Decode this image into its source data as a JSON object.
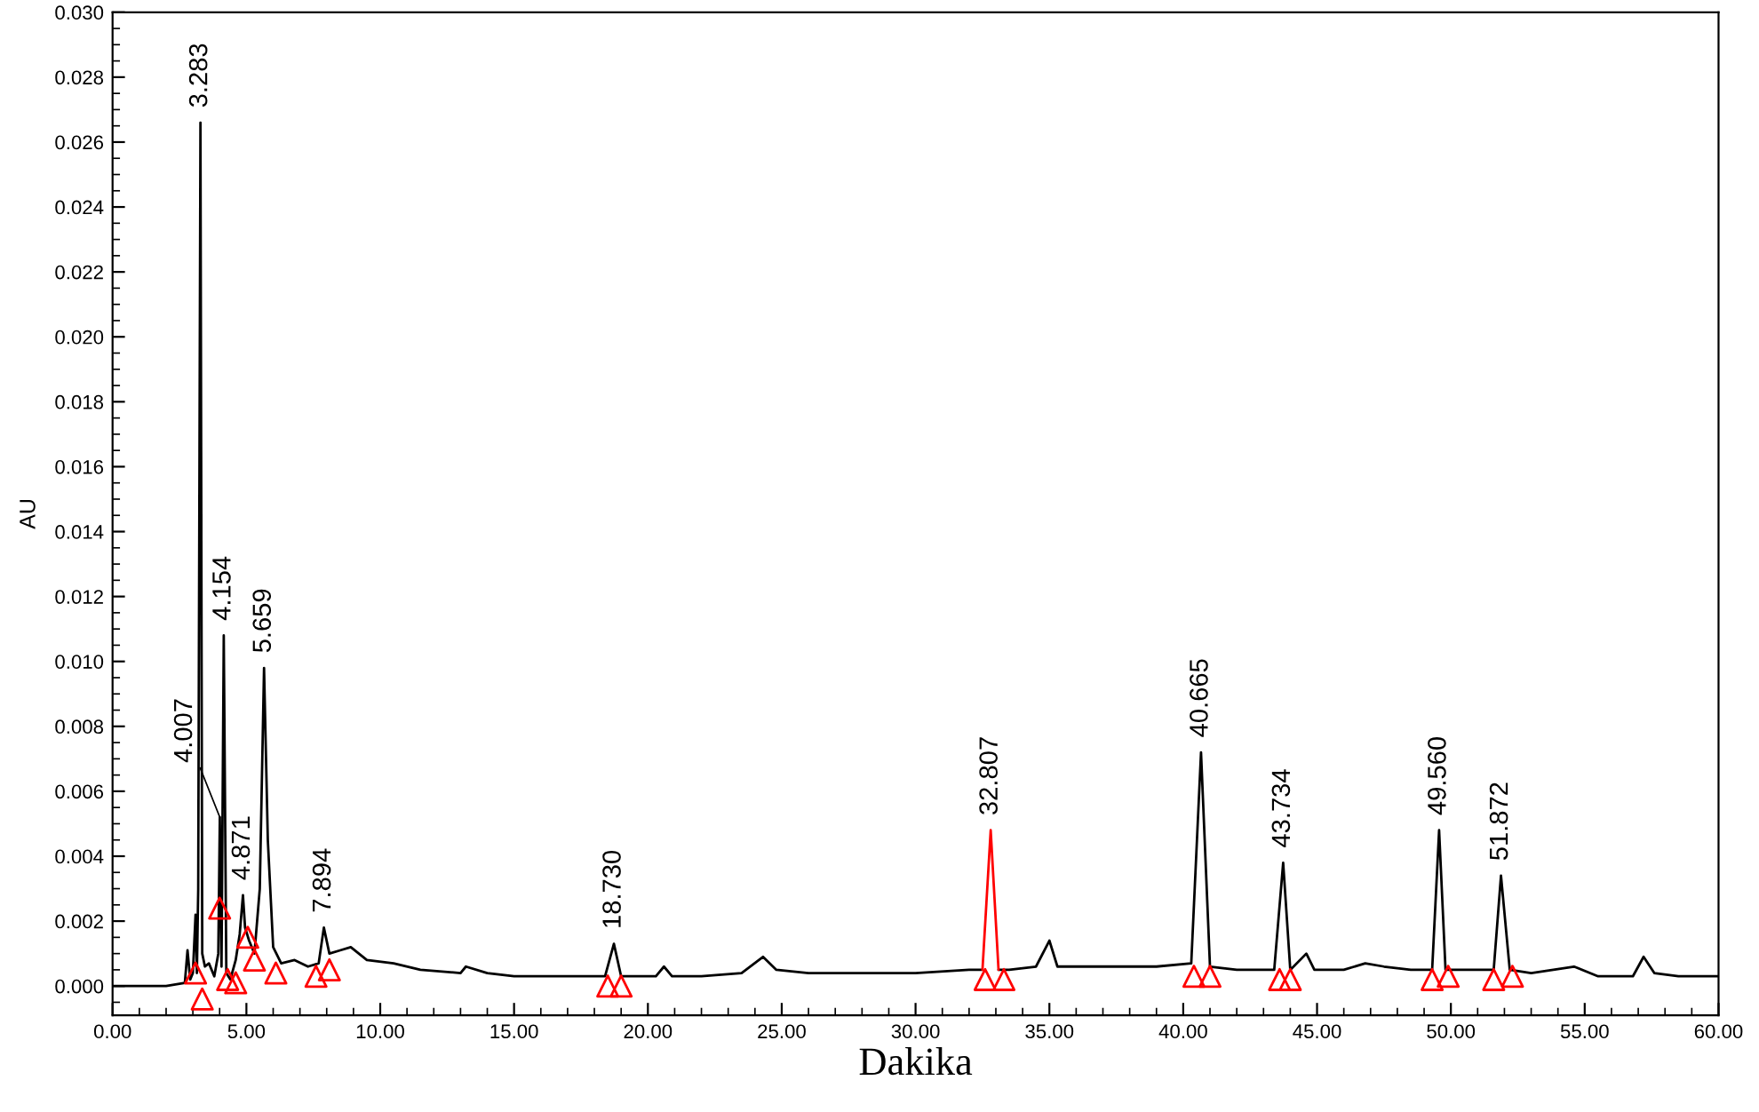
{
  "chart_data": {
    "type": "line",
    "xlabel": "Dakika",
    "ylabel": "AU",
    "xlim": [
      0,
      60
    ],
    "ylim": [
      -0.0009,
      0.03
    ],
    "xticks": [
      {
        "value": 0,
        "label": "0.00"
      },
      {
        "value": 5,
        "label": "5.00"
      },
      {
        "value": 10,
        "label": "10.00"
      },
      {
        "value": 15,
        "label": "15.00"
      },
      {
        "value": 20,
        "label": "20.00"
      },
      {
        "value": 25,
        "label": "25.00"
      },
      {
        "value": 30,
        "label": "30.00"
      },
      {
        "value": 35,
        "label": "35.00"
      },
      {
        "value": 40,
        "label": "40.00"
      },
      {
        "value": 45,
        "label": "45.00"
      },
      {
        "value": 50,
        "label": "50.00"
      },
      {
        "value": 55,
        "label": "55.00"
      },
      {
        "value": 60,
        "label": "60.00"
      }
    ],
    "yticks": [
      {
        "value": 0,
        "label": "0.000"
      },
      {
        "value": 0.002,
        "label": "0.002"
      },
      {
        "value": 0.004,
        "label": "0.004"
      },
      {
        "value": 0.006,
        "label": "0.006"
      },
      {
        "value": 0.008,
        "label": "0.008"
      },
      {
        "value": 0.01,
        "label": "0.010"
      },
      {
        "value": 0.012,
        "label": "0.012"
      },
      {
        "value": 0.014,
        "label": "0.014"
      },
      {
        "value": 0.016,
        "label": "0.016"
      },
      {
        "value": 0.018,
        "label": "0.018"
      },
      {
        "value": 0.02,
        "label": "0.020"
      },
      {
        "value": 0.022,
        "label": "0.022"
      },
      {
        "value": 0.024,
        "label": "0.024"
      },
      {
        "value": 0.026,
        "label": "0.026"
      },
      {
        "value": 0.028,
        "label": "0.028"
      },
      {
        "value": 0.03,
        "label": "0.030"
      }
    ],
    "grid": false,
    "legend": false,
    "series": [
      {
        "color": "#000000",
        "marker": "none",
        "x": [
          0,
          2.0,
          2.7,
          2.8,
          2.9,
          3.0,
          3.1,
          3.15,
          3.2,
          3.283,
          3.35,
          3.45,
          3.6,
          3.8,
          3.95,
          4.007,
          4.07,
          4.154,
          4.25,
          4.4,
          4.6,
          4.75,
          4.871,
          4.95,
          5.1,
          5.3,
          5.5,
          5.659,
          5.8,
          6.0,
          6.3,
          6.8,
          7.3,
          7.7,
          7.894,
          8.1,
          8.5,
          8.9,
          9.5,
          10.5,
          11.5,
          13.0,
          13.2,
          14,
          15,
          17,
          18.4,
          18.73,
          19.0,
          19.5,
          20.3,
          20.6,
          20.9,
          22,
          23.5,
          24.3,
          24.8,
          26,
          28,
          30,
          32,
          32.5,
          32.807,
          33.1,
          33.5,
          34.5,
          35.0,
          35.3,
          37,
          39,
          40.3,
          40.665,
          41.0,
          42,
          43.4,
          43.734,
          44.0,
          44.6,
          44.9,
          46,
          46.8,
          47.5,
          48.5,
          49.3,
          49.56,
          49.8,
          50.5,
          51.6,
          51.872,
          52.2,
          53,
          54.6,
          55.5,
          56.8,
          57.2,
          57.6,
          58.5,
          60
        ],
        "values": [
          0.0,
          0.0,
          0.0001,
          0.0011,
          0.0002,
          0.0004,
          0.0022,
          0.0004,
          0.003,
          0.0266,
          0.001,
          0.0006,
          0.0007,
          0.0003,
          0.001,
          0.0052,
          0.0006,
          0.0108,
          0.0004,
          0.0002,
          0.0008,
          0.0016,
          0.0028,
          0.0018,
          0.0014,
          0.001,
          0.003,
          0.0098,
          0.0045,
          0.0012,
          0.0007,
          0.0008,
          0.0006,
          0.0007,
          0.0018,
          0.001,
          0.0011,
          0.0012,
          0.0008,
          0.0007,
          0.0005,
          0.0004,
          0.0006,
          0.0004,
          0.0003,
          0.0003,
          0.0003,
          0.0013,
          0.0003,
          0.0003,
          0.0003,
          0.0006,
          0.0003,
          0.0003,
          0.0004,
          0.0009,
          0.0005,
          0.0004,
          0.0004,
          0.0004,
          0.0005,
          0.0005,
          null,
          0.0005,
          0.0005,
          0.0006,
          0.0014,
          0.0006,
          0.0006,
          0.0006,
          0.0007,
          0.0072,
          0.0006,
          0.0005,
          0.0005,
          0.0038,
          0.0005,
          0.001,
          0.0005,
          0.0005,
          0.0007,
          0.0006,
          0.0005,
          0.0005,
          0.0048,
          0.0005,
          0.0005,
          0.0005,
          0.0034,
          0.0005,
          0.0004,
          0.0006,
          0.0003,
          0.0003,
          0.0009,
          0.0004,
          0.0003,
          0.0003
        ]
      },
      {
        "type": "line",
        "color": "#ff0000",
        "marker": "none",
        "x": [
          32.5,
          32.807,
          33.1
        ],
        "values": [
          0.0005,
          0.0048,
          0.0005
        ]
      },
      {
        "type": "scatter",
        "color": "#ff0000",
        "marker": "triangle",
        "x": [
          3.1,
          3.35,
          4.0,
          4.3,
          4.6,
          5.05,
          5.3,
          6.1,
          7.6,
          8.1,
          18.5,
          19.0,
          32.6,
          33.3,
          40.4,
          41.0,
          43.6,
          44.0,
          49.3,
          49.9,
          51.6,
          52.3
        ],
        "values": [
          0.0004,
          -0.0004,
          0.0024,
          0.0002,
          0.0001,
          0.0015,
          0.0008,
          0.0004,
          0.0003,
          0.0005,
          0.0,
          0.0,
          0.0002,
          0.0002,
          0.0003,
          0.0003,
          0.0002,
          0.0002,
          0.0002,
          0.0003,
          0.0002,
          0.0003
        ]
      }
    ],
    "annotations": [
      {
        "text": "3.283",
        "x": 3.283,
        "y": 0.0266
      },
      {
        "text": "4.007",
        "x": 4.007,
        "y": 0.0052
      },
      {
        "text": "4.154",
        "x": 4.154,
        "y": 0.0108
      },
      {
        "text": "4.871",
        "x": 4.871,
        "y": 0.0028
      },
      {
        "text": "5.659",
        "x": 5.659,
        "y": 0.0098
      },
      {
        "text": "7.894",
        "x": 7.894,
        "y": 0.0018
      },
      {
        "text": "18.730",
        "x": 18.73,
        "y": 0.0013
      },
      {
        "text": "32.807",
        "x": 32.807,
        "y": 0.0048
      },
      {
        "text": "40.665",
        "x": 40.665,
        "y": 0.0072
      },
      {
        "text": "43.734",
        "x": 43.734,
        "y": 0.0038
      },
      {
        "text": "49.560",
        "x": 49.56,
        "y": 0.0048
      },
      {
        "text": "51.872",
        "x": 51.872,
        "y": 0.0034
      }
    ]
  }
}
